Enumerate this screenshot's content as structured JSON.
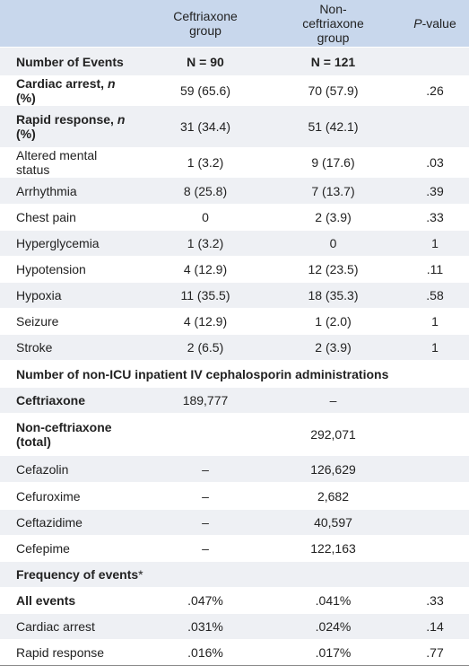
{
  "table": {
    "header": [
      [
        "Ceftriaxone group"
      ],
      [
        "Non-ceftriaxone group"
      ],
      [
        "P",
        "-value"
      ]
    ],
    "rows": [
      {
        "label": [
          "Number of Events"
        ],
        "cells": [
          "N = 90",
          "N = 121"
        ]
      },
      {
        "label": [
          "Cardiac arrest, ",
          "n",
          " (%)"
        ],
        "cells": [
          "59 (65.6)",
          "70 (57.9)",
          ".26"
        ]
      },
      {
        "label": [
          "Rapid response, ",
          "n",
          " (%)"
        ],
        "cells": [
          "31 (34.4)",
          "51 (42.1)"
        ]
      },
      {
        "label": [
          "Altered mental status"
        ],
        "cells": [
          "1 (3.2)",
          "9 (17.6)",
          ".03"
        ]
      },
      {
        "label": [
          "Arrhythmia"
        ],
        "cells": [
          "8 (25.8)",
          "7 (13.7)",
          ".39"
        ]
      },
      {
        "label": [
          "Chest pain"
        ],
        "cells": [
          "0",
          "2 (3.9)",
          ".33"
        ]
      },
      {
        "label": [
          "Hyperglycemia"
        ],
        "cells": [
          "1 (3.2)",
          "0",
          "1"
        ]
      },
      {
        "label": [
          "Hypotension"
        ],
        "cells": [
          "4 (12.9)",
          "12 (23.5)",
          ".11"
        ]
      },
      {
        "label": [
          "Hypoxia"
        ],
        "cells": [
          "11 (35.5)",
          "18 (35.3)",
          ".58"
        ]
      },
      {
        "label": [
          "Seizure"
        ],
        "cells": [
          "4 (12.9)",
          "1 (2.0)",
          "1"
        ]
      },
      {
        "label": [
          "Stroke"
        ],
        "cells": [
          "2 (6.5)",
          "2 (3.9)",
          "1"
        ]
      },
      {
        "label": [
          "Number of non-ICU inpatient IV cephalosporin administrations"
        ]
      },
      {
        "label": [
          "Ceftriaxone"
        ],
        "cells": [
          "189,777",
          "–"
        ]
      },
      {
        "label": [
          "Non-ceftriaxone (total)"
        ],
        "cells": [
          "",
          "292,071"
        ]
      },
      {
        "label": [
          "Cefazolin"
        ],
        "cells": [
          "–",
          "126,629"
        ]
      },
      {
        "label": [
          "Cefuroxime"
        ],
        "cells": [
          "–",
          "2,682"
        ]
      },
      {
        "label": [
          "Ceftazidime"
        ],
        "cells": [
          "–",
          "40,597"
        ]
      },
      {
        "label": [
          "Cefepime"
        ],
        "cells": [
          "–",
          "122,163"
        ]
      },
      {
        "label": [
          "Frequency of events",
          "*"
        ]
      },
      {
        "label": [
          "All events"
        ],
        "cells": [
          ".047%",
          ".041%",
          ".33"
        ]
      },
      {
        "label": [
          "Cardiac arrest"
        ],
        "cells": [
          ".031%",
          ".024%",
          ".14"
        ]
      },
      {
        "label": [
          "Rapid response"
        ],
        "cells": [
          ".016%",
          ".017%",
          ".77"
        ]
      }
    ]
  }
}
